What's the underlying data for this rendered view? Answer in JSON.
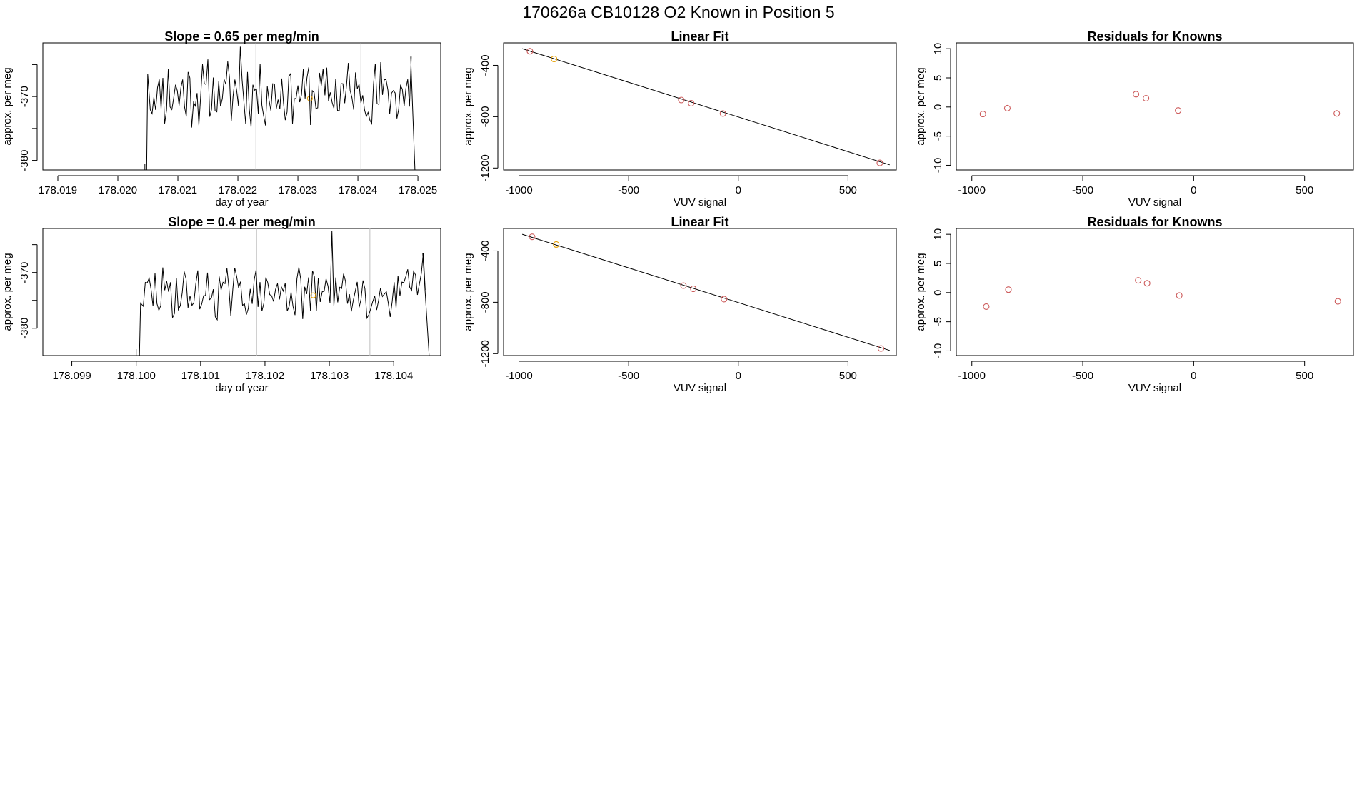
{
  "header": {
    "title": "170626a     CB10128   O2 Known in Position  5"
  },
  "colors": {
    "line": "#000000",
    "frame": "#000000",
    "vline": "#bfbfbf",
    "point": "#cd5c5c",
    "highlight": "#e69f00"
  },
  "chart_data": [
    {
      "type": "line",
      "title": "Slope =  0.65  per meg/min",
      "xlabel": "day of year",
      "ylabel": "approx. per meg",
      "xlim": [
        178.01875,
        178.02538
      ],
      "ylim": [
        -381.5,
        -361.6
      ],
      "x_ticks": [
        178.019,
        178.02,
        178.021,
        178.022,
        178.023,
        178.024,
        178.025
      ],
      "x_tick_labels": [
        "178.019",
        "178.020",
        "178.021",
        "178.022",
        "178.023",
        "178.024",
        "178.025"
      ],
      "y_ticks": [
        -380,
        -375,
        -370,
        -365
      ],
      "y_tick_labels": [
        "-380",
        "",
        "-370",
        ""
      ],
      "vlines": [
        178.0223,
        178.02405
      ],
      "marker": {
        "x": 178.0232,
        "y": -370.3
      },
      "trace": {
        "x_start": 178.02048,
        "x_end": 178.02495,
        "pre_x": [
          178.01875,
          178.02045
        ],
        "pre_y": -381.5,
        "seed": 11,
        "mean": -369.5,
        "amp": 2.7,
        "edge_lo": -381.5,
        "edge_hi": -366.5,
        "peak": {
          "x": 178.02205,
          "y": -362.2
        },
        "end_peak": {
          "x": 178.02488,
          "y": -363.8
        }
      }
    },
    {
      "type": "scatter",
      "title": "Linear Fit",
      "xlabel": "VUV signal",
      "ylabel": "approx. per meg",
      "xlim": [
        -1070,
        720
      ],
      "ylim": [
        -1215,
        -225
      ],
      "x_ticks": [
        -1000,
        -500,
        0,
        500
      ],
      "x_tick_labels": [
        "-1000",
        "-500",
        "0",
        "500"
      ],
      "y_ticks": [
        -400,
        -800,
        -1200
      ],
      "y_tick_labels": [
        "-400",
        "-800",
        "-1200"
      ],
      "fit_line": {
        "x": [
          -985,
          690
        ],
        "y": [
          -270,
          -1175
        ]
      },
      "x": [
        -950,
        -840,
        -260,
        -215,
        -70,
        645
      ],
      "y": [
        -290,
        -350,
        -670,
        -695,
        -775,
        -1160
      ],
      "highlight_index": 1
    },
    {
      "type": "scatter",
      "title": "Residuals for Knowns",
      "xlabel": "VUV signal",
      "ylabel": "approx. per meg",
      "xlim": [
        -1070,
        720
      ],
      "ylim": [
        -10.8,
        11
      ],
      "x_ticks": [
        -1000,
        -500,
        0,
        500
      ],
      "x_tick_labels": [
        "-1000",
        "-500",
        "0",
        "500"
      ],
      "y_ticks": [
        10,
        5,
        0,
        -5,
        -10
      ],
      "y_tick_labels": [
        "10",
        "5",
        "0",
        "-5",
        "-10"
      ],
      "x": [
        -950,
        -840,
        -260,
        -215,
        -70,
        645
      ],
      "y": [
        -1.2,
        -0.2,
        2.2,
        1.5,
        -0.6,
        -1.1
      ]
    },
    {
      "type": "line",
      "title": "Slope =  0.4  per meg/min",
      "xlabel": "day of year",
      "ylabel": "approx. per meg",
      "xlim": [
        178.09855,
        178.10473
      ],
      "ylim": [
        -384.9,
        -362.1
      ],
      "x_ticks": [
        178.099,
        178.1,
        178.101,
        178.102,
        178.103,
        178.104
      ],
      "x_tick_labels": [
        "178.099",
        "178.100",
        "178.101",
        "178.102",
        "178.103",
        "178.104"
      ],
      "y_ticks": [
        -380,
        -375,
        -370,
        -365
      ],
      "y_tick_labels": [
        "-380",
        "",
        "-370",
        ""
      ],
      "vlines": [
        178.10187,
        178.10363
      ],
      "marker": {
        "x": 178.10275,
        "y": -374.1
      },
      "trace": {
        "x_start": 178.10005,
        "x_end": 178.10455,
        "pre_x": [
          178.09855,
          178.1
        ],
        "pre_y": -384.9,
        "seed": 29,
        "mean": -373.8,
        "amp": 2.4,
        "edge_lo": -384.9,
        "edge_hi": -375.5,
        "peak": {
          "x": 178.10303,
          "y": -362.6
        },
        "end_peak": {
          "x": 178.10445,
          "y": -366.5
        }
      }
    },
    {
      "type": "scatter",
      "title": "Linear Fit",
      "xlabel": "VUV signal",
      "ylabel": "approx. per meg",
      "xlim": [
        -1070,
        720
      ],
      "ylim": [
        -1215,
        -225
      ],
      "x_ticks": [
        -1000,
        -500,
        0,
        500
      ],
      "x_tick_labels": [
        "-1000",
        "-500",
        "0",
        "500"
      ],
      "y_ticks": [
        -400,
        -800,
        -1200
      ],
      "y_tick_labels": [
        "-400",
        "-800",
        "-1200"
      ],
      "fit_line": {
        "x": [
          -985,
          690
        ],
        "y": [
          -270,
          -1175
        ]
      },
      "x": [
        -940,
        -830,
        -250,
        -205,
        -65,
        650
      ],
      "y": [
        -290,
        -350,
        -670,
        -695,
        -775,
        -1160
      ],
      "highlight_index": 1
    },
    {
      "type": "scatter",
      "title": "Residuals for Knowns",
      "xlabel": "VUV signal",
      "ylabel": "approx. per meg",
      "xlim": [
        -1070,
        720
      ],
      "ylim": [
        -10.8,
        11
      ],
      "x_ticks": [
        -1000,
        -500,
        0,
        500
      ],
      "x_tick_labels": [
        "-1000",
        "-500",
        "0",
        "500"
      ],
      "y_ticks": [
        10,
        5,
        0,
        -5,
        -10
      ],
      "y_tick_labels": [
        "10",
        "5",
        "0",
        "-5",
        "-10"
      ],
      "x": [
        -935,
        -835,
        -250,
        -210,
        -65,
        650
      ],
      "y": [
        -2.4,
        0.5,
        2.1,
        1.6,
        -0.5,
        -1.5
      ]
    }
  ]
}
